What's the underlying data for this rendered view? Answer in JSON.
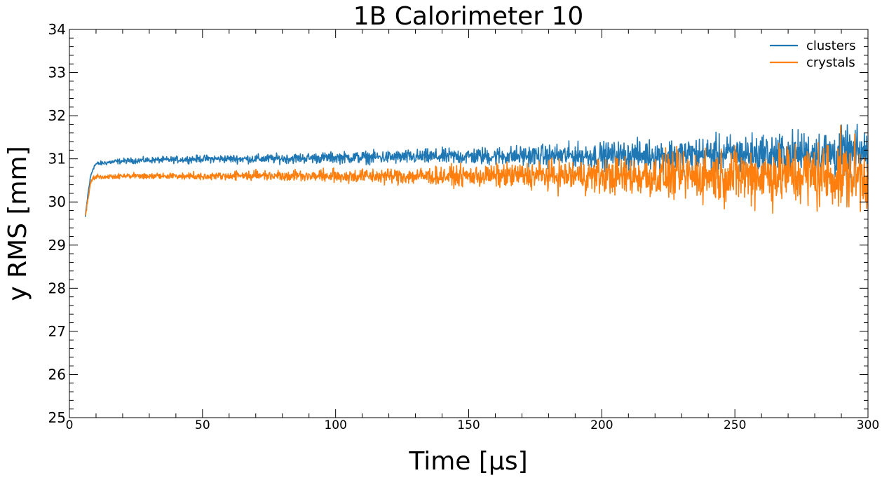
{
  "chart_data": {
    "type": "line",
    "title": "1B Calorimeter 10",
    "xlabel": "Time [µs]",
    "ylabel": "y RMS [mm]",
    "xlim": [
      0,
      300
    ],
    "ylim": [
      25,
      34
    ],
    "x_ticks": [
      0,
      50,
      100,
      150,
      200,
      250,
      300
    ],
    "y_ticks": [
      25,
      26,
      27,
      28,
      29,
      30,
      31,
      32,
      33,
      34
    ],
    "grid": false,
    "legend_position": "top-right",
    "series": [
      {
        "name": "clusters",
        "color": "#1f77b4",
        "points": [
          [
            6,
            29.65
          ],
          [
            7,
            30.2
          ],
          [
            8,
            30.6
          ],
          [
            9,
            30.8
          ],
          [
            10,
            30.88
          ],
          [
            15,
            30.92
          ],
          [
            20,
            30.95
          ],
          [
            30,
            30.97
          ],
          [
            40,
            30.98
          ],
          [
            50,
            31.0
          ],
          [
            75,
            31.0
          ],
          [
            100,
            31.03
          ],
          [
            125,
            31.04
          ],
          [
            150,
            31.06
          ],
          [
            175,
            31.07
          ],
          [
            200,
            31.08
          ],
          [
            225,
            31.09
          ],
          [
            250,
            31.1
          ],
          [
            275,
            31.12
          ],
          [
            300,
            31.12
          ]
        ],
        "noise_band": [
          [
            10,
            0.05
          ],
          [
            50,
            0.08
          ],
          [
            100,
            0.12
          ],
          [
            150,
            0.18
          ],
          [
            200,
            0.28
          ],
          [
            250,
            0.42
          ],
          [
            300,
            0.55
          ]
        ]
      },
      {
        "name": "crystals",
        "color": "#ff7f0e",
        "points": [
          [
            6,
            29.65
          ],
          [
            7,
            30.1
          ],
          [
            8,
            30.45
          ],
          [
            9,
            30.55
          ],
          [
            10,
            30.58
          ],
          [
            20,
            30.6
          ],
          [
            50,
            30.6
          ],
          [
            75,
            30.62
          ],
          [
            100,
            30.6
          ],
          [
            125,
            30.6
          ],
          [
            150,
            30.6
          ],
          [
            175,
            30.62
          ],
          [
            200,
            30.6
          ],
          [
            225,
            30.6
          ],
          [
            250,
            30.62
          ],
          [
            275,
            30.62
          ],
          [
            300,
            30.62
          ]
        ],
        "noise_band": [
          [
            10,
            0.05
          ],
          [
            50,
            0.08
          ],
          [
            100,
            0.14
          ],
          [
            150,
            0.22
          ],
          [
            200,
            0.38
          ],
          [
            250,
            0.6
          ],
          [
            300,
            0.8
          ]
        ]
      }
    ]
  }
}
